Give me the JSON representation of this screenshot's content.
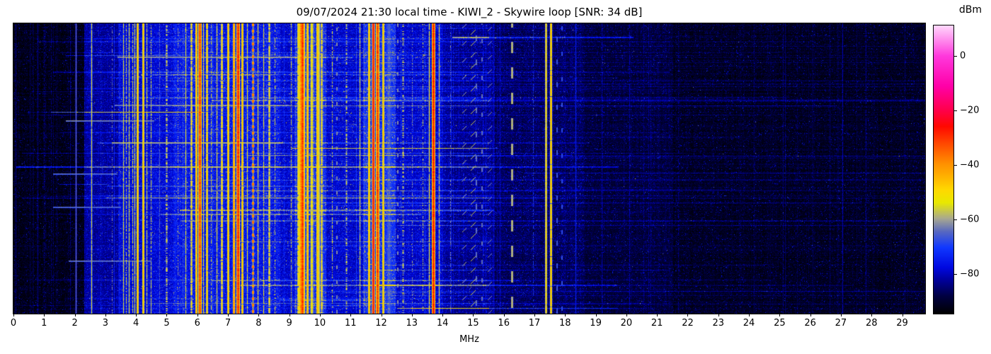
{
  "title": "09/07/2024 21:30 local time - KIWI_2 - Skywire loop [SNR: 34 dB]",
  "axes": {
    "x_label": "MHz",
    "x_ticks": [
      {
        "label": "0",
        "value": 0
      },
      {
        "label": "1",
        "value": 1
      },
      {
        "label": "2",
        "value": 2
      },
      {
        "label": "3",
        "value": 3
      },
      {
        "label": "4",
        "value": 4
      },
      {
        "label": "5",
        "value": 5
      },
      {
        "label": "6",
        "value": 6
      },
      {
        "label": "7",
        "value": 7
      },
      {
        "label": "8",
        "value": 8
      },
      {
        "label": "9",
        "value": 9
      },
      {
        "label": "10",
        "value": 10
      },
      {
        "label": "11",
        "value": 11
      },
      {
        "label": "12",
        "value": 12
      },
      {
        "label": "13",
        "value": 13
      },
      {
        "label": "14",
        "value": 14
      },
      {
        "label": "15",
        "value": 15
      },
      {
        "label": "16",
        "value": 16
      },
      {
        "label": "17",
        "value": 17
      },
      {
        "label": "18",
        "value": 18
      },
      {
        "label": "19",
        "value": 19
      },
      {
        "label": "20",
        "value": 20
      },
      {
        "label": "21",
        "value": 21
      },
      {
        "label": "22",
        "value": 22
      },
      {
        "label": "23",
        "value": 23
      },
      {
        "label": "24",
        "value": 24
      },
      {
        "label": "25",
        "value": 25
      },
      {
        "label": "26",
        "value": 26
      },
      {
        "label": "27",
        "value": 27
      },
      {
        "label": "28",
        "value": 28
      },
      {
        "label": "29",
        "value": 29
      }
    ],
    "colorbar": {
      "label": "dBm",
      "ticks": [
        {
          "label": "0",
          "value": 0
        },
        {
          "label": "−20",
          "value": -20
        },
        {
          "label": "−40",
          "value": -40
        },
        {
          "label": "−60",
          "value": -60
        },
        {
          "label": "−80",
          "value": -80
        }
      ]
    }
  },
  "chart_data": {
    "type": "heatmap",
    "subtype": "hf-waterfall-spectrogram",
    "title": "09/07/2024 21:30 local time - KIWI_2 - Skywire loop [SNR: 34 dB]",
    "xlabel": "MHz",
    "x_range": [
      0,
      29.75
    ],
    "value_label": "dBm",
    "value_range": [
      -94.6,
      11.2
    ],
    "snr_db": 34,
    "seed": 20240907,
    "colormap_stops": [
      [
        0.0,
        "#000000"
      ],
      [
        0.06,
        "#000040"
      ],
      [
        0.12,
        "#0000a0"
      ],
      [
        0.16,
        "#0008e0"
      ],
      [
        0.23,
        "#1038ff"
      ],
      [
        0.285,
        "#5868c0"
      ],
      [
        0.33,
        "#a8a890"
      ],
      [
        0.385,
        "#e8e800"
      ],
      [
        0.43,
        "#ffd800"
      ],
      [
        0.48,
        "#ffae00"
      ],
      [
        0.52,
        "#ff9000"
      ],
      [
        0.59,
        "#ff4800"
      ],
      [
        0.65,
        "#ff0800"
      ],
      [
        0.704,
        "#ff0048"
      ],
      [
        0.79,
        "#ff00a8"
      ],
      [
        0.894,
        "#ff38dc"
      ],
      [
        1.0,
        "#ffd8fc"
      ]
    ],
    "noise_floor": [
      {
        "from": 0.0,
        "to": 2.3,
        "dbm": -92.5,
        "jitter": 5
      },
      {
        "from": 2.3,
        "to": 3.4,
        "dbm": -83,
        "jitter": 6
      },
      {
        "from": 3.4,
        "to": 5.2,
        "dbm": -79,
        "jitter": 7
      },
      {
        "from": 5.2,
        "to": 8.7,
        "dbm": -77,
        "jitter": 8
      },
      {
        "from": 8.7,
        "to": 9.15,
        "dbm": -80,
        "jitter": 7
      },
      {
        "from": 9.15,
        "to": 10.2,
        "dbm": -74,
        "jitter": 8
      },
      {
        "from": 10.2,
        "to": 11.4,
        "dbm": -80,
        "jitter": 7
      },
      {
        "from": 11.4,
        "to": 12.45,
        "dbm": -73,
        "jitter": 8
      },
      {
        "from": 12.45,
        "to": 14.0,
        "dbm": -80,
        "jitter": 7
      },
      {
        "from": 14.0,
        "to": 15.7,
        "dbm": -84,
        "jitter": 6
      },
      {
        "from": 15.7,
        "to": 18.6,
        "dbm": -87.5,
        "jitter": 6
      },
      {
        "from": 18.6,
        "to": 21.5,
        "dbm": -89.5,
        "jitter": 5
      },
      {
        "from": 21.5,
        "to": 29.75,
        "dbm": -91.5,
        "jitter": 5
      }
    ],
    "signal_bands": [
      {
        "f": 0.06,
        "w": 2,
        "p": -84,
        "d": 0.9,
        "s": "gray"
      },
      {
        "f": 2.04,
        "w": 2,
        "p": -63,
        "d": 1.0,
        "s": "gray"
      },
      {
        "f": 2.55,
        "w": 2,
        "p": -52,
        "d": 0.95,
        "s": "solid"
      },
      {
        "f": 3.2,
        "w": 2,
        "p": -62,
        "d": 0.5,
        "s": "tele"
      },
      {
        "f": 3.58,
        "w": 2,
        "p": -53,
        "d": 0.9,
        "s": "solid"
      },
      {
        "f": 3.68,
        "w": 2,
        "p": -56,
        "d": 0.7,
        "s": "tele"
      },
      {
        "f": 3.77,
        "w": 2,
        "p": -52,
        "d": 0.9,
        "s": "solid"
      },
      {
        "f": 3.88,
        "w": 2,
        "p": -55,
        "d": 0.8,
        "s": "tele"
      },
      {
        "f": 3.95,
        "w": 2,
        "p": -52,
        "d": 0.9,
        "s": "solid"
      },
      {
        "f": 4.05,
        "w": 3,
        "p": -44,
        "d": 1.0,
        "s": "solid"
      },
      {
        "f": 4.23,
        "w": 3,
        "p": -45,
        "d": 1.0,
        "s": "solid"
      },
      {
        "f": 4.35,
        "w": 2,
        "p": -54,
        "d": 0.8,
        "s": "tele"
      },
      {
        "f": 4.47,
        "w": 2,
        "p": -55,
        "d": 0.7,
        "s": "tele"
      },
      {
        "f": 4.75,
        "w": 2,
        "p": -65,
        "d": 0.8,
        "s": "gray"
      },
      {
        "f": 5.0,
        "w": 3,
        "p": -54,
        "d": 0.55,
        "s": "tele"
      },
      {
        "f": 5.35,
        "w": 2,
        "p": -60,
        "d": 0.5,
        "s": "tele"
      },
      {
        "f": 5.62,
        "w": 2,
        "p": -52,
        "d": 0.85,
        "s": "solid"
      },
      {
        "f": 5.8,
        "w": 3,
        "p": -50,
        "d": 0.9,
        "s": "solid"
      },
      {
        "f": 5.96,
        "w": 3,
        "p": -42,
        "d": 1.0,
        "s": "solid"
      },
      {
        "f": 6.07,
        "w": 4,
        "p": -30,
        "d": 1.0,
        "s": "solid"
      },
      {
        "f": 6.18,
        "w": 2,
        "p": -50,
        "d": 0.9,
        "s": "solid"
      },
      {
        "f": 6.3,
        "w": 3,
        "p": -47,
        "d": 0.95,
        "s": "solid"
      },
      {
        "f": 6.45,
        "w": 2,
        "p": -55,
        "d": 0.6,
        "s": "tele"
      },
      {
        "f": 6.62,
        "w": 2,
        "p": -51,
        "d": 0.85,
        "s": "solid"
      },
      {
        "f": 6.8,
        "w": 3,
        "p": -48,
        "d": 0.9,
        "s": "solid"
      },
      {
        "f": 7.0,
        "w": 3,
        "p": -44,
        "d": 1.0,
        "s": "solid"
      },
      {
        "f": 7.18,
        "w": 3,
        "p": -38,
        "d": 1.0,
        "s": "solid"
      },
      {
        "f": 7.32,
        "w": 4,
        "p": -28,
        "d": 1.0,
        "s": "solid"
      },
      {
        "f": 7.47,
        "w": 3,
        "p": -44,
        "d": 0.95,
        "s": "solid"
      },
      {
        "f": 7.63,
        "w": 2,
        "p": -51,
        "d": 0.85,
        "s": "solid"
      },
      {
        "f": 7.8,
        "w": 2,
        "p": -52,
        "d": 1.0,
        "s": "solid"
      },
      {
        "f": 7.8,
        "w": 3,
        "p": -33,
        "d": 0.5,
        "s": "dot",
        "on": 4,
        "off": 5
      },
      {
        "f": 7.98,
        "w": 2,
        "p": -50,
        "d": 0.9,
        "s": "solid"
      },
      {
        "f": 8.15,
        "w": 2,
        "p": -52,
        "d": 0.8,
        "s": "solid"
      },
      {
        "f": 8.33,
        "w": 3,
        "p": -50,
        "d": 0.85,
        "s": "solid"
      },
      {
        "f": 8.52,
        "w": 2,
        "p": -56,
        "d": 0.6,
        "s": "tele"
      },
      {
        "f": 9.05,
        "w": 2,
        "p": -55,
        "d": 0.6,
        "s": "tele"
      },
      {
        "f": 9.28,
        "w": 3,
        "p": -48,
        "d": 0.9,
        "s": "solid"
      },
      {
        "f": 9.4,
        "w": 8,
        "p": -36,
        "d": 1.0,
        "s": "solid"
      },
      {
        "f": 9.42,
        "w": 4,
        "p": -29,
        "d": 1.0,
        "s": "solid"
      },
      {
        "f": 9.58,
        "w": 3,
        "p": -42,
        "d": 1.0,
        "s": "solid"
      },
      {
        "f": 9.73,
        "w": 5,
        "p": -52,
        "d": 1.0,
        "s": "solid"
      },
      {
        "f": 9.95,
        "w": 5,
        "p": -56,
        "d": 1.0,
        "s": "gray"
      },
      {
        "f": 9.9,
        "w": 3,
        "p": -43,
        "d": 1.0,
        "s": "solid"
      },
      {
        "f": 10.05,
        "w": 3,
        "p": -50,
        "d": 0.9,
        "s": "solid"
      },
      {
        "f": 10.4,
        "w": 2,
        "p": -54,
        "d": 0.6,
        "s": "tele"
      },
      {
        "f": 10.85,
        "w": 3,
        "p": -56,
        "d": 0.5,
        "s": "tele"
      },
      {
        "f": 11.3,
        "w": 2,
        "p": -52,
        "d": 0.8,
        "s": "solid"
      },
      {
        "f": 11.6,
        "w": 3,
        "p": -43,
        "d": 1.0,
        "s": "solid"
      },
      {
        "f": 11.73,
        "w": 3,
        "p": -24,
        "d": 1.0,
        "s": "solid"
      },
      {
        "f": 11.88,
        "w": 4,
        "p": -30,
        "d": 1.0,
        "s": "solid"
      },
      {
        "f": 12.05,
        "w": 3,
        "p": -45,
        "d": 1.0,
        "s": "solid"
      },
      {
        "f": 12.25,
        "w": 12,
        "p": -66,
        "d": 1.0,
        "s": "gray"
      },
      {
        "f": 12.7,
        "w": 3,
        "p": -55,
        "d": 0.5,
        "s": "tele"
      },
      {
        "f": 13.0,
        "w": 2,
        "p": -60,
        "d": 0.4,
        "s": "tele"
      },
      {
        "f": 13.35,
        "w": 2,
        "p": -57,
        "d": 0.5,
        "s": "tele"
      },
      {
        "f": 13.55,
        "w": 2,
        "p": -50,
        "d": 0.9,
        "s": "solid"
      },
      {
        "f": 13.7,
        "w": 4,
        "p": -27,
        "d": 1.0,
        "s": "solid"
      },
      {
        "f": 13.88,
        "w": 2,
        "p": -52,
        "d": 0.8,
        "s": "solid"
      },
      {
        "f": 14.25,
        "w": 2,
        "p": -62,
        "d": 0.4,
        "s": "tele"
      },
      {
        "f": 16.95,
        "w": 2,
        "p": -70,
        "d": 0.5,
        "s": "tele"
      },
      {
        "f": 17.38,
        "w": 3,
        "p": -48,
        "d": 1.0,
        "s": "solid"
      },
      {
        "f": 17.52,
        "w": 3,
        "p": -44,
        "d": 0.95,
        "s": "solid"
      },
      {
        "f": 18.35,
        "w": 2,
        "p": -74,
        "d": 1.0,
        "s": "gray"
      },
      {
        "f": 19.2,
        "w": 2,
        "p": -80,
        "d": 0.8,
        "s": "gray"
      },
      {
        "f": 20.1,
        "w": 2,
        "p": -80,
        "d": 0.7,
        "s": "gray"
      },
      {
        "f": 21.7,
        "w": 1,
        "p": -82,
        "d": 0.6,
        "s": "gray"
      },
      {
        "f": 25.1,
        "w": 1,
        "p": -84,
        "d": 0.7,
        "s": "gray"
      },
      {
        "f": 27.05,
        "w": 2,
        "p": -80,
        "d": 0.9,
        "s": "gray"
      },
      {
        "f": 27.8,
        "w": 1,
        "p": -82,
        "d": 0.7,
        "s": "gray"
      }
    ],
    "dashed_lines": [
      {
        "f": 16.25,
        "w": 3,
        "p": -59,
        "on": 16,
        "off": 20
      },
      {
        "f": 15.1,
        "w": 2,
        "p": -64,
        "on": 8,
        "off": 26
      },
      {
        "f": 15.3,
        "w": 2,
        "p": -64,
        "on": 6,
        "off": 20
      },
      {
        "f": 17.75,
        "w": 2,
        "p": -67,
        "on": 7,
        "off": 25
      },
      {
        "f": 17.9,
        "w": 2,
        "p": -68,
        "on": 6,
        "off": 30
      },
      {
        "f": 12.55,
        "w": 2,
        "p": -62,
        "on": 5,
        "off": 18
      },
      {
        "f": 10.55,
        "w": 2,
        "p": -62,
        "on": 5,
        "off": 16
      }
    ],
    "diagonal_marks": [
      {
        "f": 14.9,
        "period": 16,
        "len": 7,
        "p": -57
      },
      {
        "f": 14.62,
        "period": 24,
        "len": 6,
        "p": -60
      },
      {
        "f": 15.45,
        "period": 20,
        "len": 6,
        "p": -62
      }
    ],
    "strong_streaks": [
      {
        "r": 47,
        "f0": 3.4,
        "f1": 10.2,
        "dbm": -60
      },
      {
        "r": 115,
        "f0": 3.3,
        "f1": 9.0,
        "dbm": -62
      },
      {
        "r": 137,
        "f0": 1.7,
        "f1": 4.6,
        "dbm": -62
      },
      {
        "r": 168,
        "f0": 3.2,
        "f1": 8.8,
        "dbm": -58
      },
      {
        "r": 212,
        "f0": 1.3,
        "f1": 3.4,
        "dbm": -64
      },
      {
        "r": 259,
        "f0": 1.3,
        "f1": 3.5,
        "dbm": -64
      },
      {
        "r": 335,
        "f0": 1.8,
        "f1": 4.5,
        "dbm": -63
      }
    ],
    "random_streaks": {
      "count": 120
    },
    "minor_vertical_lines": {
      "count_low_band": 70,
      "count_high_band": 26
    }
  }
}
